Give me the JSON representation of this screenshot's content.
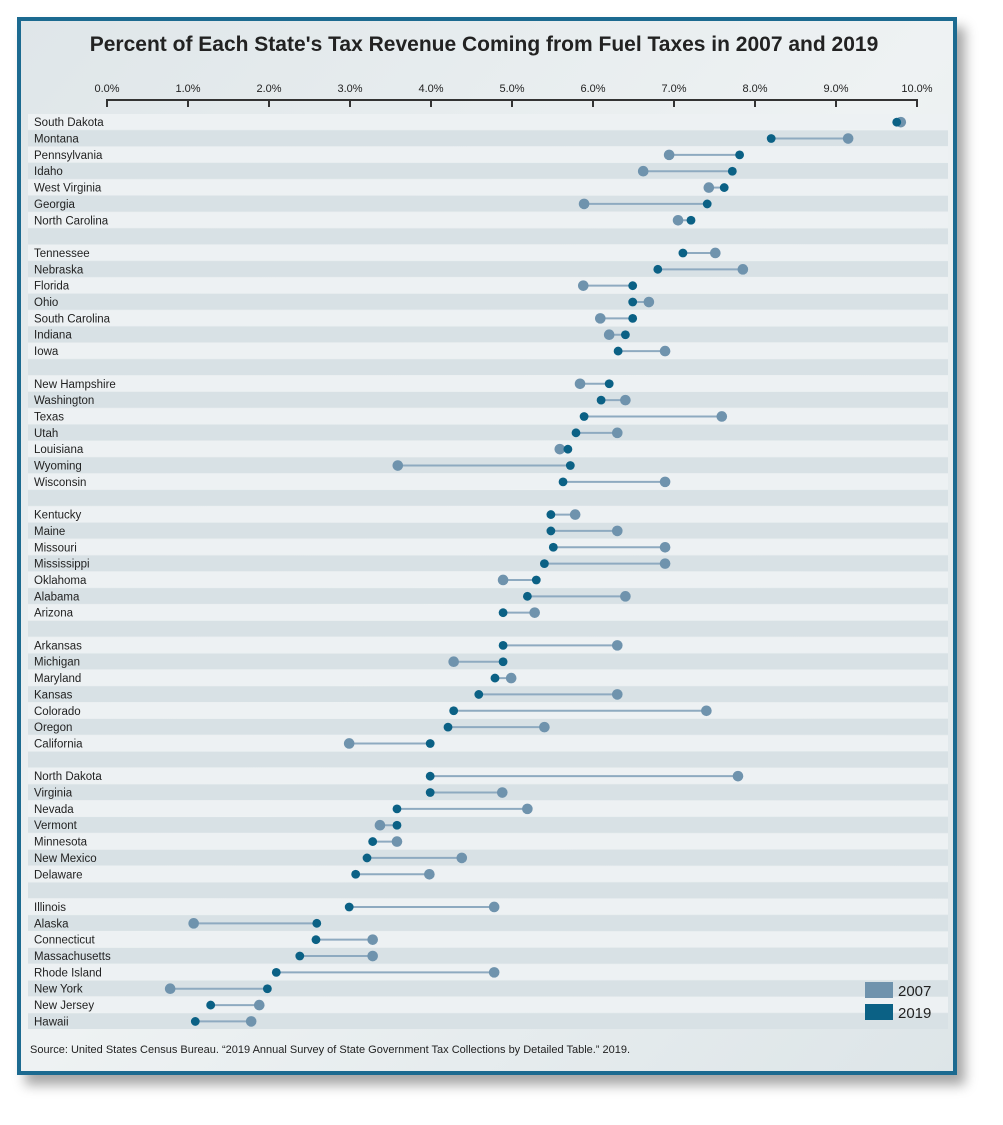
{
  "chart_data": {
    "type": "dumbbell",
    "title": "Percent of Each State's Tax Revenue Coming from Fuel Taxes in 2007 and 2019",
    "xlim": [
      0,
      10
    ],
    "x_ticks": [
      "0.0%",
      "1.0%",
      "2.0%",
      "3.0%",
      "4.0%",
      "5.0%",
      "6.0%",
      "7.0%",
      "8.0%",
      "9.0%",
      "10.0%"
    ],
    "grid": false,
    "legend_position": "bottom-right",
    "series": [
      {
        "name": "2007",
        "color": "#6f93ad"
      },
      {
        "name": "2019",
        "color": "#0b6185"
      }
    ],
    "connector_color": "#8eaac0",
    "categories": [
      "South Dakota",
      "Montana",
      "Pennsylvania",
      "Idaho",
      "West Virginia",
      "Georgia",
      "North Carolina",
      "Tennessee",
      "Nebraska",
      "Florida",
      "Ohio",
      "South Carolina",
      "Indiana",
      "Iowa",
      "New Hampshire",
      "Washington",
      "Texas",
      "Utah",
      "Louisiana",
      "Wyoming",
      "Wisconsin",
      "Kentucky",
      "Maine",
      "Missouri",
      "Mississippi",
      "Oklahoma",
      "Alabama",
      "Arizona",
      "Arkansas",
      "Michigan",
      "Maryland",
      "Kansas",
      "Colorado",
      "Oregon",
      "California",
      "North Dakota",
      "Virginia",
      "Nevada",
      "Vermont",
      "Minnesota",
      "New Mexico",
      "Delaware",
      "Illinois",
      "Alaska",
      "Connecticut",
      "Massachusetts",
      "Rhode Island",
      "New York",
      "New Jersey",
      "Hawaii"
    ],
    "values_2007": [
      9.8,
      9.15,
      6.94,
      6.62,
      7.43,
      5.89,
      7.05,
      7.51,
      7.85,
      5.88,
      6.69,
      6.09,
      6.2,
      6.89,
      5.84,
      6.4,
      7.59,
      6.3,
      5.59,
      3.59,
      6.89,
      5.78,
      6.3,
      6.89,
      6.89,
      4.89,
      6.4,
      5.28,
      6.3,
      4.28,
      4.99,
      6.3,
      7.4,
      5.4,
      2.99,
      7.79,
      4.88,
      5.19,
      3.37,
      3.58,
      4.38,
      3.98,
      4.78,
      1.07,
      3.28,
      3.28,
      4.78,
      0.78,
      1.88,
      1.78
    ],
    "values_2019": [
      9.75,
      8.2,
      7.81,
      7.72,
      7.62,
      7.41,
      7.21,
      7.11,
      6.8,
      6.49,
      6.49,
      6.49,
      6.4,
      6.31,
      6.2,
      6.1,
      5.89,
      5.79,
      5.69,
      5.72,
      5.63,
      5.48,
      5.48,
      5.51,
      5.4,
      5.3,
      5.19,
      4.89,
      4.89,
      4.89,
      4.79,
      4.59,
      4.28,
      4.21,
      3.99,
      3.99,
      3.99,
      3.58,
      3.58,
      3.28,
      3.21,
      3.07,
      2.99,
      2.59,
      2.58,
      2.38,
      2.09,
      1.98,
      1.28,
      1.09
    ],
    "source": "Source: United States Census Bureau. “2019 Annual Survey of State Government Tax Collections by Detailed Table.” 2019."
  }
}
